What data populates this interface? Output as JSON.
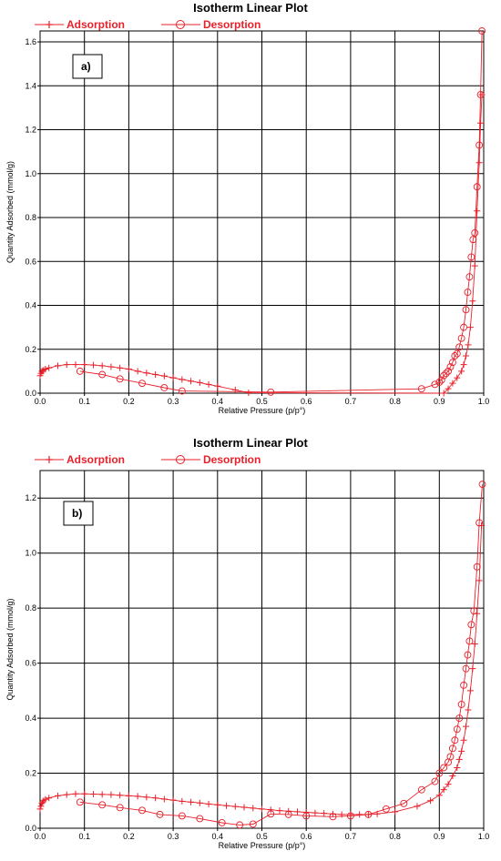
{
  "chart_data": [
    {
      "type": "line",
      "title": "Isotherm Linear Plot",
      "panel_label": "a)",
      "xlabel": "Relative Pressure (p/p°)",
      "ylabel": "Quantity Adsorbed (mmol/g)",
      "xlim": [
        0,
        1.0
      ],
      "ylim": [
        0,
        1.65
      ],
      "x_ticks": [
        "0.0",
        "0.1",
        "0.2",
        "0.3",
        "0.4",
        "0.5",
        "0.6",
        "0.7",
        "0.8",
        "0.9",
        "1.0"
      ],
      "y_ticks": [
        "0.0",
        "0.2",
        "0.4",
        "0.6",
        "0.8",
        "1.0",
        "1.2",
        "1.4",
        "1.6"
      ],
      "grid": true,
      "legend_position": "top-left",
      "series": [
        {
          "name": "Adsorption",
          "marker": "plus",
          "color": "#e8202a",
          "x": [
            0.0,
            0.002,
            0.004,
            0.006,
            0.008,
            0.012,
            0.02,
            0.04,
            0.06,
            0.08,
            0.1,
            0.12,
            0.14,
            0.16,
            0.18,
            0.2,
            0.22,
            0.24,
            0.26,
            0.28,
            0.3,
            0.32,
            0.34,
            0.36,
            0.38,
            0.4,
            0.44,
            0.47,
            0.91,
            0.92,
            0.93,
            0.94,
            0.95,
            0.955,
            0.96,
            0.965,
            0.97,
            0.975,
            0.98,
            0.985,
            0.99,
            0.993,
            0.996
          ],
          "y": [
            0.08,
            0.09,
            0.1,
            0.1,
            0.105,
            0.11,
            0.115,
            0.125,
            0.13,
            0.13,
            0.13,
            0.128,
            0.125,
            0.12,
            0.115,
            0.11,
            0.1,
            0.092,
            0.085,
            0.078,
            0.07,
            0.062,
            0.055,
            0.048,
            0.04,
            0.032,
            0.015,
            0.002,
            0.0,
            0.02,
            0.045,
            0.07,
            0.1,
            0.13,
            0.17,
            0.22,
            0.3,
            0.42,
            0.58,
            0.83,
            1.05,
            1.23,
            1.36
          ]
        },
        {
          "name": "Desorption",
          "marker": "circle",
          "color": "#e8202a",
          "x": [
            0.996,
            0.993,
            0.99,
            0.985,
            0.98,
            0.976,
            0.972,
            0.968,
            0.964,
            0.96,
            0.955,
            0.95,
            0.945,
            0.94,
            0.935,
            0.93,
            0.925,
            0.92,
            0.915,
            0.91,
            0.905,
            0.9,
            0.89,
            0.86,
            0.52,
            0.32,
            0.28,
            0.23,
            0.18,
            0.14,
            0.09
          ],
          "y": [
            1.65,
            1.36,
            1.13,
            0.94,
            0.73,
            0.7,
            0.62,
            0.53,
            0.46,
            0.38,
            0.3,
            0.25,
            0.21,
            0.18,
            0.17,
            0.14,
            0.12,
            0.1,
            0.09,
            0.08,
            0.06,
            0.05,
            0.04,
            0.02,
            0.005,
            0.01,
            0.025,
            0.045,
            0.065,
            0.085,
            0.1
          ]
        }
      ]
    },
    {
      "type": "line",
      "title": "Isotherm Linear Plot",
      "panel_label": "b)",
      "xlabel": "Relative Pressure (p/p°)",
      "ylabel": "Quantity Adsorbed (mmol/g)",
      "xlim": [
        0,
        1.0
      ],
      "ylim": [
        0,
        1.3
      ],
      "x_ticks": [
        "0.0",
        "0.1",
        "0.2",
        "0.3",
        "0.4",
        "0.5",
        "0.6",
        "0.7",
        "0.8",
        "0.9",
        "1.0"
      ],
      "y_ticks": [
        "0.0",
        "0.2",
        "0.4",
        "0.6",
        "0.8",
        "1.0",
        "1.2"
      ],
      "grid": true,
      "legend_position": "top-left",
      "series": [
        {
          "name": "Adsorption",
          "marker": "plus",
          "color": "#e8202a",
          "x": [
            0.0,
            0.002,
            0.004,
            0.006,
            0.008,
            0.012,
            0.02,
            0.04,
            0.06,
            0.08,
            0.1,
            0.12,
            0.14,
            0.16,
            0.18,
            0.2,
            0.22,
            0.24,
            0.26,
            0.28,
            0.3,
            0.32,
            0.34,
            0.36,
            0.38,
            0.4,
            0.42,
            0.44,
            0.46,
            0.48,
            0.5,
            0.52,
            0.54,
            0.56,
            0.58,
            0.6,
            0.62,
            0.64,
            0.66,
            0.68,
            0.7,
            0.72,
            0.74,
            0.76,
            0.8,
            0.85,
            0.88,
            0.9,
            0.91,
            0.92,
            0.93,
            0.94,
            0.945,
            0.95,
            0.955,
            0.96,
            0.965,
            0.97,
            0.975,
            0.98,
            0.985,
            0.99,
            0.995
          ],
          "y": [
            0.07,
            0.08,
            0.09,
            0.095,
            0.1,
            0.105,
            0.11,
            0.118,
            0.122,
            0.125,
            0.125,
            0.124,
            0.123,
            0.122,
            0.12,
            0.118,
            0.116,
            0.113,
            0.11,
            0.106,
            0.102,
            0.098,
            0.095,
            0.092,
            0.088,
            0.085,
            0.082,
            0.079,
            0.076,
            0.073,
            0.07,
            0.067,
            0.064,
            0.062,
            0.06,
            0.058,
            0.056,
            0.054,
            0.052,
            0.05,
            0.05,
            0.05,
            0.05,
            0.052,
            0.06,
            0.08,
            0.1,
            0.12,
            0.14,
            0.16,
            0.19,
            0.22,
            0.25,
            0.28,
            0.32,
            0.37,
            0.43,
            0.5,
            0.58,
            0.67,
            0.78,
            0.9,
            1.1
          ]
        },
        {
          "name": "Desorption",
          "marker": "circle",
          "color": "#e8202a",
          "x": [
            0.997,
            0.99,
            0.985,
            0.978,
            0.972,
            0.968,
            0.964,
            0.96,
            0.955,
            0.95,
            0.945,
            0.94,
            0.935,
            0.93,
            0.925,
            0.92,
            0.91,
            0.9,
            0.89,
            0.86,
            0.82,
            0.78,
            0.74,
            0.7,
            0.66,
            0.6,
            0.56,
            0.52,
            0.48,
            0.45,
            0.41,
            0.36,
            0.32,
            0.27,
            0.23,
            0.18,
            0.14,
            0.09
          ],
          "y": [
            1.25,
            1.11,
            0.95,
            0.79,
            0.74,
            0.68,
            0.63,
            0.58,
            0.52,
            0.45,
            0.4,
            0.36,
            0.32,
            0.29,
            0.26,
            0.24,
            0.22,
            0.2,
            0.17,
            0.14,
            0.09,
            0.07,
            0.05,
            0.045,
            0.042,
            0.045,
            0.05,
            0.052,
            0.015,
            0.012,
            0.02,
            0.035,
            0.045,
            0.05,
            0.065,
            0.075,
            0.085,
            0.095
          ]
        }
      ]
    }
  ]
}
